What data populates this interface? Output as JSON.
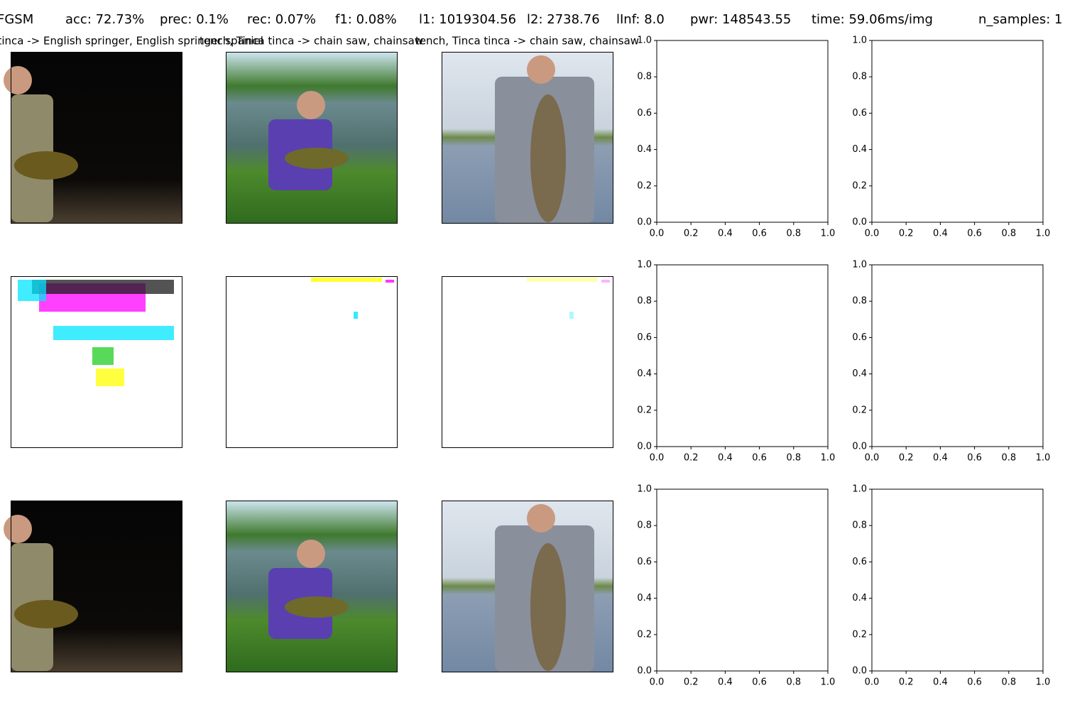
{
  "header": {
    "method": "FGSM",
    "metrics": [
      "acc: 72.73%",
      "prec: 0.1%",
      "rec: 0.07%",
      "f1: 0.08%",
      "l1: 1019304.56",
      "l2: 2738.76",
      "lInf: 8.0",
      "pwr: 148543.55",
      "time: 59.06ms/img",
      "n_samples: 1"
    ]
  },
  "titles": [
    "tench, Tinca tinca -> English springer, English springer spaniel",
    "tench, Tinca tinca -> chain saw, chainsaw",
    "tench, Tinca tinca -> chain saw, chainsaw"
  ],
  "axes": {
    "xlim": [
      0,
      1
    ],
    "ylim": [
      0,
      1
    ],
    "xticks": [
      {
        "value": 0,
        "label": "0.0"
      },
      {
        "value": 0.2,
        "label": "0.2"
      },
      {
        "value": 0.4,
        "label": "0.4"
      },
      {
        "value": 0.6,
        "label": "0.6"
      },
      {
        "value": 0.8,
        "label": "0.8"
      },
      {
        "value": 1,
        "label": "1.0"
      }
    ],
    "yticks": [
      {
        "value": 0,
        "label": "0.0"
      },
      {
        "value": 0.2,
        "label": "0.2"
      },
      {
        "value": 0.4,
        "label": "0.4"
      },
      {
        "value": 0.6,
        "label": "0.6"
      },
      {
        "value": 0.8,
        "label": "0.8"
      },
      {
        "value": 1,
        "label": "1.0"
      }
    ]
  }
}
